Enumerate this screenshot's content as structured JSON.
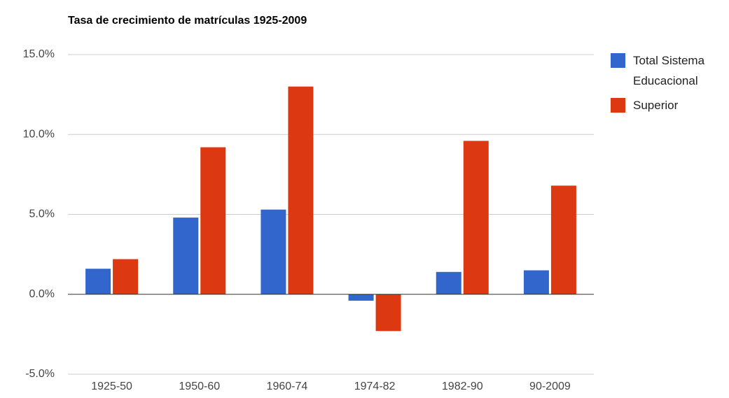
{
  "chart_data": {
    "type": "bar",
    "title": "Tasa de crecimiento de matrículas 1925-2009",
    "categories": [
      "1925-50",
      "1950-60",
      "1960-74",
      "1974-82",
      "1982-90",
      "90-2009"
    ],
    "series": [
      {
        "name": "Total Sistema Educacional",
        "color": "#3366cc",
        "values": [
          1.6,
          4.8,
          5.3,
          -0.4,
          1.4,
          1.5
        ]
      },
      {
        "name": "Superior",
        "color": "#dc3912",
        "values": [
          2.2,
          9.2,
          13.0,
          -2.3,
          9.6,
          6.8
        ]
      }
    ],
    "ylim": [
      -5,
      15
    ],
    "yticks": [
      {
        "value": -5,
        "label": "-5.0%"
      },
      {
        "value": 0,
        "label": "0.0%"
      },
      {
        "value": 5,
        "label": "5.0%"
      },
      {
        "value": 10,
        "label": "10.0%"
      },
      {
        "value": 15,
        "label": "15.0%"
      }
    ],
    "grid": true,
    "legend": "right"
  }
}
